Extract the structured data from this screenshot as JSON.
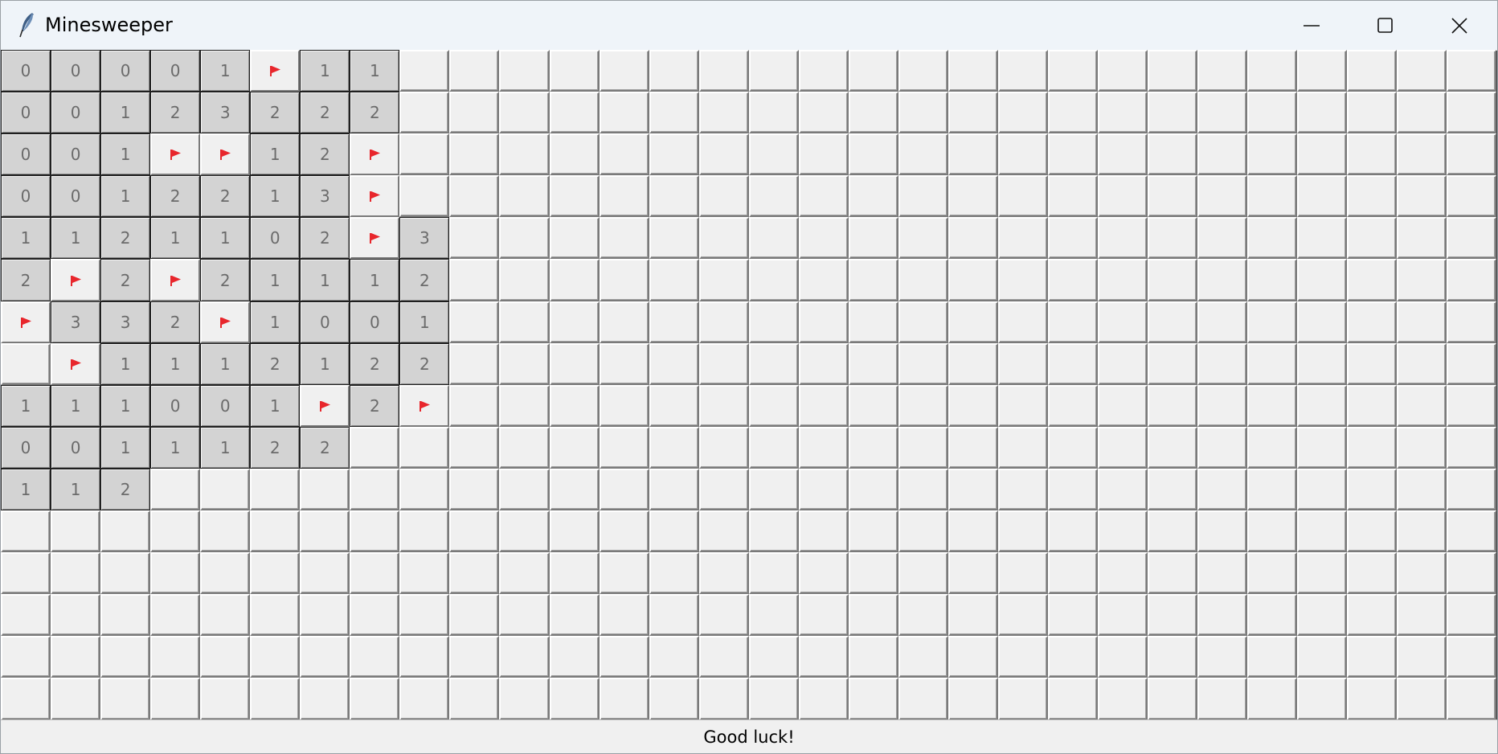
{
  "window": {
    "title": "Minesweeper"
  },
  "icons": {
    "app": "feather-icon",
    "minimize": "minimize-icon",
    "maximize": "maximize-icon",
    "close": "close-icon",
    "flag": "flag-icon"
  },
  "colors": {
    "flag": "#e8262c",
    "number_text": "#6b6b6b",
    "revealed_bg": "#d3d3d3",
    "covered_bg": "#f0f0f0"
  },
  "board": {
    "columns": 30,
    "rows": 16,
    "revealed": [
      [
        "0",
        "0",
        "0",
        "0",
        "1",
        "F",
        "1",
        "1"
      ],
      [
        "0",
        "0",
        "1",
        "2",
        "3",
        "2",
        "2",
        "2"
      ],
      [
        "0",
        "0",
        "1",
        "F",
        "F",
        "1",
        "2",
        "F"
      ],
      [
        "0",
        "0",
        "1",
        "2",
        "2",
        "1",
        "3",
        "F"
      ],
      [
        "1",
        "1",
        "2",
        "1",
        "1",
        "0",
        "2",
        "F",
        "3"
      ],
      [
        "2",
        "F",
        "2",
        "F",
        "2",
        "1",
        "1",
        "1",
        "2"
      ],
      [
        "F",
        "3",
        "3",
        "2",
        "F",
        "1",
        "0",
        "0",
        "1"
      ],
      [
        "",
        "F",
        "1",
        "1",
        "1",
        "2",
        "1",
        "2",
        "2"
      ],
      [
        "1",
        "1",
        "1",
        "0",
        "0",
        "1",
        "F",
        "2",
        "F"
      ],
      [
        "0",
        "0",
        "1",
        "1",
        "1",
        "2",
        "2"
      ],
      [
        "1",
        "1",
        "2"
      ]
    ]
  },
  "status": {
    "message": "Good luck!"
  }
}
